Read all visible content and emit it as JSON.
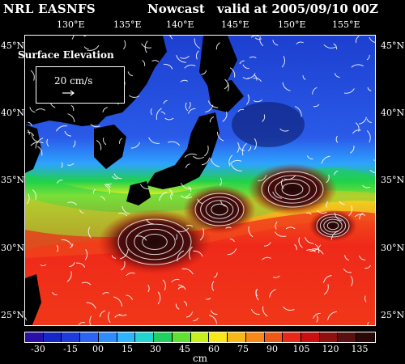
{
  "header": {
    "product": "NRL EASNFS",
    "type": "Nowcast",
    "valid": "valid at 2005/09/10 00Z"
  },
  "map": {
    "longitudes": [
      "130°E",
      "135°E",
      "140°E",
      "145°E",
      "150°E",
      "155°E"
    ],
    "latitudes": [
      "45°N",
      "40°N",
      "35°N",
      "30°N",
      "25°N"
    ],
    "field": "Surface Elevation",
    "vector_scale": "20 cm/s",
    "land_color": "#000000",
    "palette": {
      "low": "#1d3fd0",
      "mid": "#2ea3ff",
      "green": "#1fd14a",
      "yellow": "#e8f020",
      "orange": "#f5a020",
      "red": "#ef2a1a",
      "dark": "#200808"
    }
  },
  "colorbar": {
    "ticks": [
      "-30",
      "-15",
      "00",
      "15",
      "30",
      "45",
      "60",
      "75",
      "90",
      "105",
      "120",
      "135"
    ],
    "colors": [
      "#2a10a8",
      "#1428c8",
      "#1e3cdc",
      "#2a64f0",
      "#2f8cff",
      "#2fb4ff",
      "#24d4d0",
      "#20d060",
      "#60e030",
      "#c8f020",
      "#f8e818",
      "#f8b818",
      "#f88818",
      "#f05818",
      "#e82818",
      "#c81010",
      "#901010",
      "#581010",
      "#2a0808"
    ],
    "unit": "cm"
  }
}
